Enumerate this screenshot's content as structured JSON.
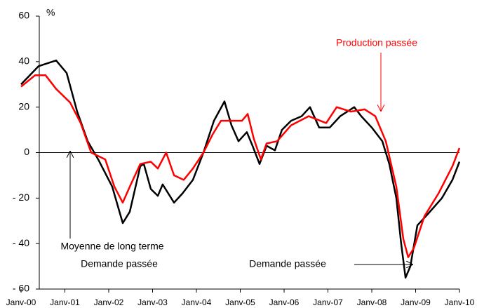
{
  "chart_data": {
    "type": "line",
    "y_unit_label": "%",
    "xlim": [
      2000,
      2010
    ],
    "xticks": [
      {
        "value": 2000,
        "label": "Janv-00"
      },
      {
        "value": 2001,
        "label": "Janv-01"
      },
      {
        "value": 2002,
        "label": "Janv-02"
      },
      {
        "value": 2003,
        "label": "Janv-03"
      },
      {
        "value": 2004,
        "label": "Janv-04"
      },
      {
        "value": 2005,
        "label": "Janv-05"
      },
      {
        "value": 2006,
        "label": "Janv-06"
      },
      {
        "value": 2007,
        "label": "Janv-07"
      },
      {
        "value": 2008,
        "label": "Janv-08"
      },
      {
        "value": 2009,
        "label": "Janv-09"
      },
      {
        "value": 2010,
        "label": "Janv-10"
      }
    ],
    "ylim": [
      -60,
      60
    ],
    "yticks": [
      {
        "value": -60,
        "label": "- 60"
      },
      {
        "value": -40,
        "label": "- 40"
      },
      {
        "value": -20,
        "label": "- 20"
      },
      0,
      20,
      40,
      60
    ],
    "series": [
      {
        "name": "Demande passée",
        "color": "#000000",
        "x": [
          2000.0,
          2000.4,
          2000.8,
          2001.04,
          2001.28,
          2001.52,
          2001.76,
          2002.08,
          2002.32,
          2002.48,
          2002.72,
          2002.8,
          2002.96,
          2003.12,
          2003.23,
          2003.36,
          2003.49,
          2003.68,
          2003.92,
          2004.16,
          2004.4,
          2004.64,
          2004.8,
          2004.96,
          2005.15,
          2005.28,
          2005.44,
          2005.6,
          2005.79,
          2005.95,
          2006.16,
          2006.4,
          2006.59,
          2006.8,
          2007.04,
          2007.28,
          2007.6,
          2007.76,
          2008.0,
          2008.24,
          2008.4,
          2008.56,
          2008.67,
          2008.77,
          2008.88,
          2009.04,
          2009.28,
          2009.6,
          2009.84,
          2010.0
        ],
        "values": [
          30,
          38,
          40.5,
          35,
          18,
          5,
          -3,
          -15,
          -31,
          -26,
          -6,
          -5,
          -16,
          -19,
          -14,
          -18,
          -22,
          -18,
          -12,
          0,
          14,
          22.5,
          12,
          5,
          9,
          3,
          -5,
          3,
          1,
          10,
          14,
          16,
          20,
          11,
          11,
          16,
          20,
          16,
          11,
          5,
          -5,
          -20,
          -40,
          -55,
          -50,
          -32,
          -27,
          -20,
          -12,
          -4
        ]
      },
      {
        "name": "Production passée",
        "color": "#ff0000",
        "x": [
          2000.0,
          2000.32,
          2000.56,
          2000.8,
          2001.12,
          2001.36,
          2001.6,
          2001.92,
          2002.13,
          2002.32,
          2002.48,
          2002.72,
          2002.96,
          2003.12,
          2003.31,
          2003.49,
          2003.71,
          2003.92,
          2004.16,
          2004.37,
          2004.56,
          2004.8,
          2005.04,
          2005.17,
          2005.31,
          2005.47,
          2005.6,
          2005.84,
          2006.16,
          2006.56,
          2006.96,
          2007.2,
          2007.52,
          2007.84,
          2008.08,
          2008.32,
          2008.56,
          2008.72,
          2008.83,
          2008.96,
          2009.2,
          2009.52,
          2009.84,
          2010.0
        ],
        "values": [
          29,
          34,
          34,
          28,
          22,
          13,
          0,
          -3,
          -15,
          -22,
          -15,
          -5,
          -4,
          -7,
          0,
          -10,
          -12,
          -7,
          0,
          8,
          14,
          14,
          14,
          17,
          6,
          -3,
          4,
          5,
          12,
          16,
          13,
          20,
          18,
          19,
          16,
          5,
          -15,
          -38,
          -46,
          -42,
          -28,
          -18,
          -6,
          2
        ]
      }
    ],
    "annotations": [
      "Production passée",
      "Moyenne de long terme",
      "Demande passée",
      "Demande passée"
    ]
  }
}
